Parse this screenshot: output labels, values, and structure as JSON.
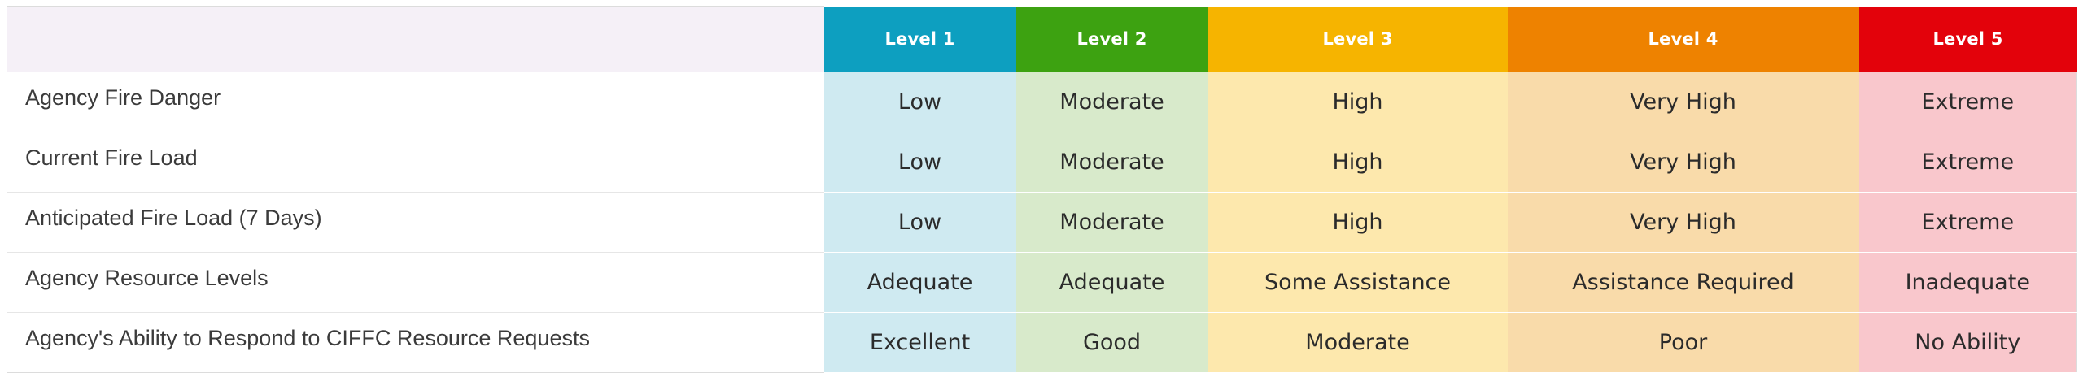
{
  "colors": {
    "level1": "#0d9fc0",
    "level2": "#3da211",
    "level3": "#f6b400",
    "level4": "#ee8200",
    "level5": "#e3020b"
  },
  "header": {
    "corner": "",
    "levels": [
      "Level 1",
      "Level 2",
      "Level 3",
      "Level 4",
      "Level 5"
    ]
  },
  "rows": [
    {
      "label": "Agency Fire Danger",
      "values": [
        "Low",
        "Moderate",
        "High",
        "Very High",
        "Extreme"
      ]
    },
    {
      "label": "Current Fire Load",
      "values": [
        "Low",
        "Moderate",
        "High",
        "Very High",
        "Extreme"
      ]
    },
    {
      "label": "Anticipated Fire Load (7 Days)",
      "values": [
        "Low",
        "Moderate",
        "High",
        "Very High",
        "Extreme"
      ]
    },
    {
      "label": "Agency Resource Levels",
      "values": [
        "Adequate",
        "Adequate",
        "Some Assistance",
        "Assistance Required",
        "Inadequate"
      ]
    },
    {
      "label": "Agency's Ability to Respond to CIFFC Resource Requests",
      "values": [
        "Excellent",
        "Good",
        "Moderate",
        "Poor",
        "No Ability"
      ]
    }
  ]
}
